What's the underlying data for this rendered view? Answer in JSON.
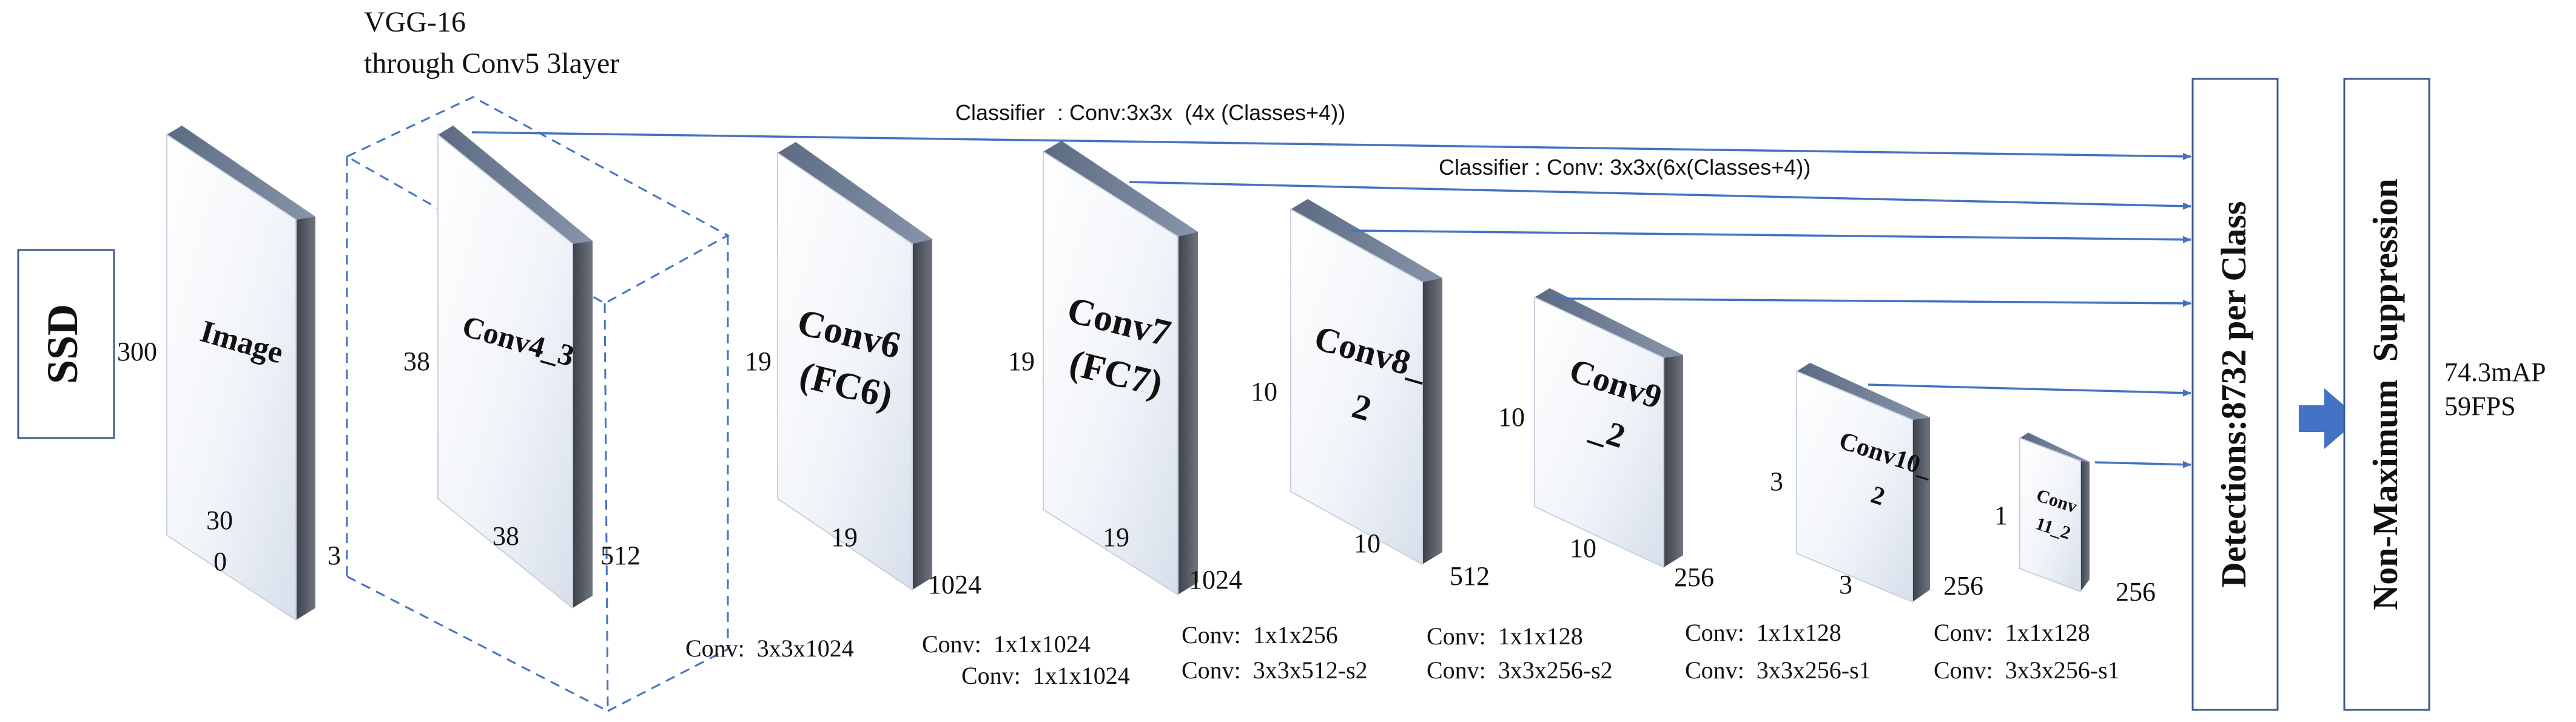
{
  "ssd_label": "SSD",
  "vgg": {
    "line1": "VGG-16",
    "line2": "through Conv5 3layer"
  },
  "classifier_top": "Classifier  : Conv:3x3x  (4x (Classes+4))",
  "classifier_mid": "Classifier : Conv: 3x3x(6x(Classes+4))",
  "layers": [
    {
      "name": "Image",
      "size_left": "300",
      "size_bottom_line1": "30",
      "size_bottom_line2": "0",
      "depth": "3"
    },
    {
      "name": "Conv4_3",
      "size_left": "38",
      "size_bottom": "38",
      "depth": "512"
    },
    {
      "name_line1": "Conv6",
      "name_line2": "(FC6)",
      "size_left": "19",
      "size_bottom": "19",
      "depth": "1024"
    },
    {
      "name_line1": "Conv7",
      "name_line2": "(FC7)",
      "size_left": "19",
      "size_bottom": "19",
      "depth": "1024"
    },
    {
      "name_line1": "Conv8_",
      "name_line2": "2",
      "size_left": "10",
      "size_bottom": "10",
      "depth": "512"
    },
    {
      "name_line1": "Conv9",
      "name_line2": "_2",
      "size_left": "10",
      "size_bottom": "10",
      "depth": "256"
    },
    {
      "name_line1": "Conv10_",
      "name_line2": "2",
      "size_left": "3",
      "size_bottom": "3",
      "depth": "256"
    },
    {
      "name_line1": "Conv",
      "name_line2": "11_2",
      "size_left": "1",
      "depth": "256"
    }
  ],
  "conv_ops": [
    {
      "line1": "Conv:  3x3x1024"
    },
    {
      "line1": "Conv:  1x1x1024",
      "line2": "Conv:  1x1x1024"
    },
    {
      "line1": "Conv:  1x1x256",
      "line2": "Conv:  3x3x512-s2"
    },
    {
      "line1": "Conv:  1x1x128",
      "line2": "Conv:  3x3x256-s2"
    },
    {
      "line1": "Conv:  1x1x128",
      "line2": "Conv:  3x3x256-s1"
    },
    {
      "line1": "Conv:  1x1x128",
      "line2": "Conv:  3x3x256-s1"
    }
  ],
  "detections_label": "Detections:8732 per Class",
  "nms_label": "Non-Maximum  Suppression",
  "results": {
    "map": "74.3mAP",
    "fps": "59FPS"
  }
}
